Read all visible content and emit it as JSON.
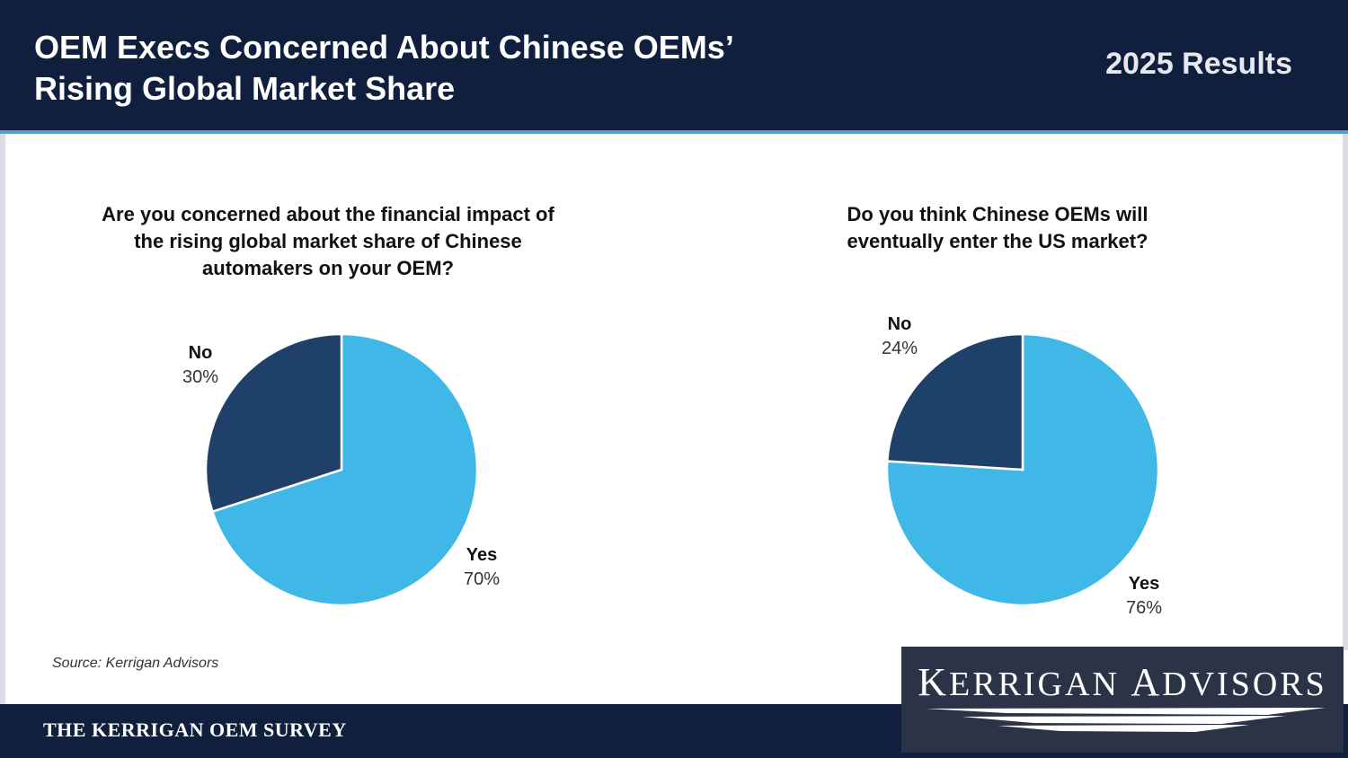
{
  "header": {
    "title": "OEM Execs Concerned About Chinese OEMs’\nRising Global Market Share",
    "results": "2025 Results"
  },
  "chart_data": [
    {
      "type": "pie",
      "title": "Are you concerned about the financial impact of\nthe rising global market share of Chinese\nautomakers on your OEM?",
      "slices": [
        {
          "label": "Yes",
          "value": 70,
          "display": "70%",
          "color": "#3fb8e8"
        },
        {
          "label": "No",
          "value": 30,
          "display": "30%",
          "color": "#1f4068"
        }
      ]
    },
    {
      "type": "pie",
      "title": "Do you think Chinese OEMs will\neventually enter the US market?",
      "slices": [
        {
          "label": "Yes",
          "value": 76,
          "display": "76%",
          "color": "#3fb8e8"
        },
        {
          "label": "No",
          "value": 24,
          "display": "24%",
          "color": "#1f4068"
        }
      ]
    }
  ],
  "source": "Source: Kerrigan Advisors",
  "footer": {
    "survey_name": "THE KERRIGAN OEM SURVEY",
    "logo_text": "Kerrigan Advisors"
  }
}
